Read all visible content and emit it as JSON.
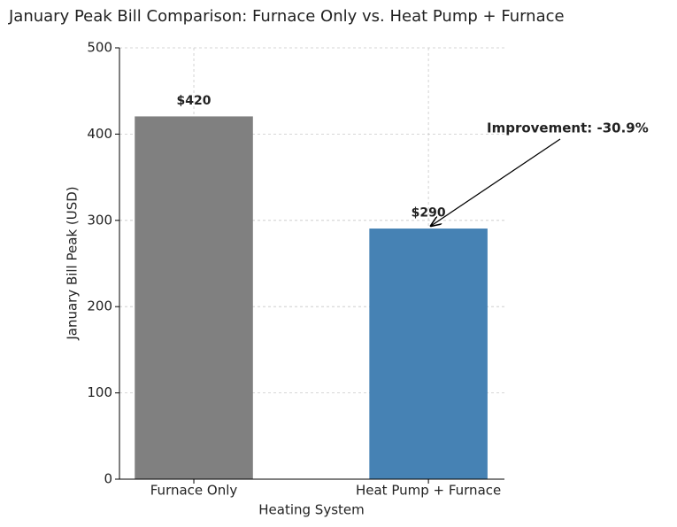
{
  "chart_data": {
    "type": "bar",
    "title": "January Peak Bill Comparison: Furnace Only vs. Heat Pump + Furnace",
    "xlabel": "Heating System",
    "ylabel": "January Bill Peak (USD)",
    "categories": [
      "Furnace Only",
      "Heat Pump + Furnace"
    ],
    "values": [
      420,
      290
    ],
    "value_labels": [
      "$420",
      "$290"
    ],
    "colors": [
      "#808080",
      "#4682b4"
    ],
    "ylim": [
      0,
      500
    ],
    "yticks": [
      0,
      100,
      200,
      300,
      400,
      500
    ],
    "grid": true,
    "annotation": "Improvement: -30.9%"
  }
}
